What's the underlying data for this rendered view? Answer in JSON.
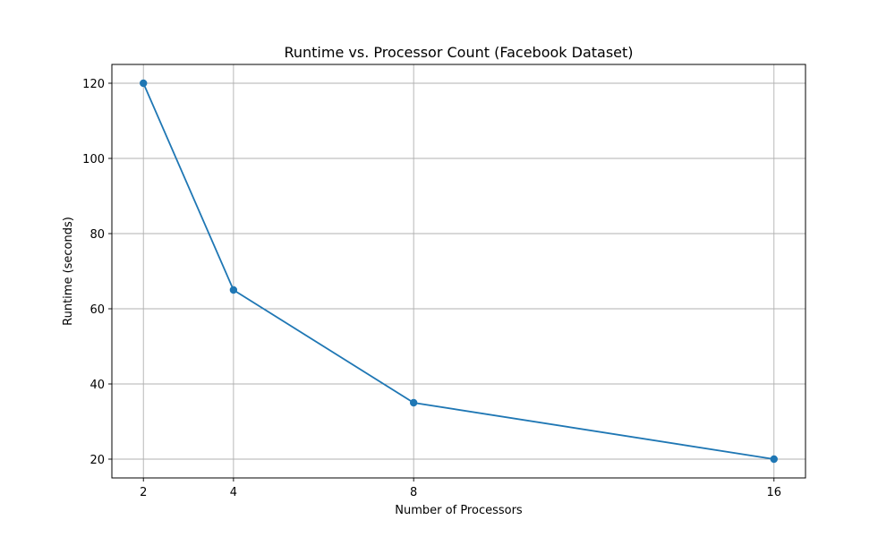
{
  "chart_data": {
    "type": "line",
    "title": "Runtime vs. Processor Count (Facebook Dataset)",
    "xlabel": "Number of Processors",
    "ylabel": "Runtime (seconds)",
    "x": [
      2,
      4,
      8,
      16
    ],
    "xticks": [
      "2",
      "4",
      "8",
      "16"
    ],
    "yticks": [
      20,
      40,
      60,
      80,
      100,
      120
    ],
    "xlim": [
      1.3,
      16.7
    ],
    "ylim": [
      15,
      125
    ],
    "grid": true,
    "series": [
      {
        "values": [
          120,
          65,
          35,
          20
        ],
        "color": "#1f77b4",
        "marker": "circle"
      }
    ]
  }
}
